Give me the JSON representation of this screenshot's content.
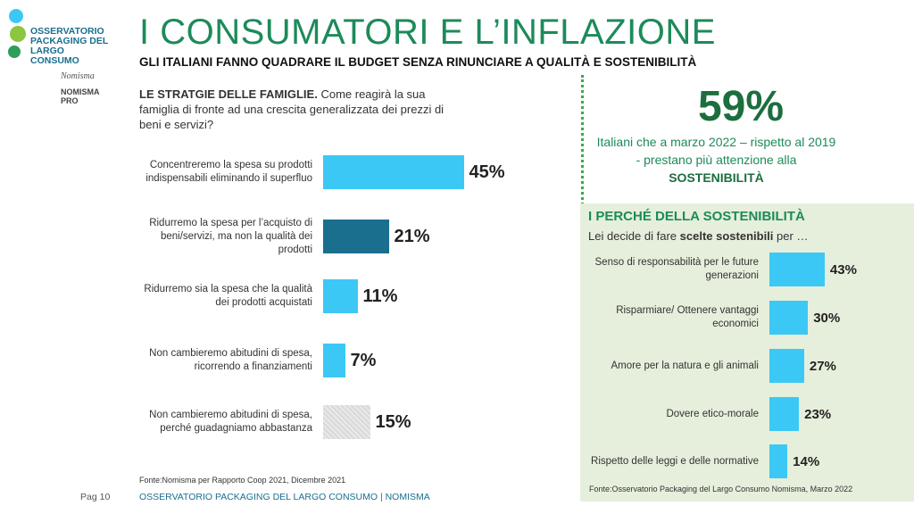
{
  "logo": {
    "name": "OSSERVATORIO PACKAGING DEL LARGO CONSUMO",
    "brand": "Nomisma",
    "brand_sub": "NOMISMA PRO"
  },
  "header": {
    "title": "I CONSUMATORI E L’INFLAZIONE",
    "subtitle": "GLI ITALIANI FANNO QUADRARE IL BUDGET SENZA RINUNCIARE A QUALITÀ E SOSTENIBILITÀ"
  },
  "highlight": {
    "figure": "59%",
    "text": "Italiani che a marzo 2022 – rispetto al 2019 - prestano più attenzione alla",
    "text_bold": "SOSTENIBILITÀ"
  },
  "footer": {
    "page": "Pag 10",
    "text": "OSSERVATORIO PACKAGING DEL LARGO CONSUMO | NOMISMA"
  },
  "chart_data": [
    {
      "type": "bar",
      "title": "LE STRATGIE DELLE FAMIGLIE.",
      "subtitle": "Come reagirà la sua famiglia di fronte ad una crescita generalizzata dei prezzi di beni e servizi?",
      "categories": [
        "Concentreremo la spesa su prodotti indispensabili eliminando il superfluo",
        "Ridurremo la spesa per l’acquisto di beni/servizi, ma non la qualità dei prodotti",
        "Ridurremo sia la spesa che la qualità dei prodotti acquistati",
        "Non cambieremo abitudini di spesa, ricorrendo a finanziamenti",
        "Non cambieremo abitudini di spesa, perché guadagniamo abbastanza"
      ],
      "values": [
        45,
        21,
        11,
        7,
        15
      ],
      "value_labels": [
        "45%",
        "21%",
        "11%",
        "7%",
        "15%"
      ],
      "colors": [
        "#3cc8f5",
        "#1a6e8e",
        "#3cc8f5",
        "#3cc8f5",
        "#d9d9d9"
      ],
      "source": "Fonte:Nomisma per Rapporto Coop 2021, Dicembre 2021"
    },
    {
      "type": "bar",
      "title": "I PERCHÉ DELLA SOSTENIBILITÀ",
      "subtitle_parts": [
        "Lei decide di fare",
        "scelte sostenibili",
        "per …"
      ],
      "categories": [
        "Senso di responsabilità per le future generazioni",
        "Risparmiare/ Ottenere vantaggi economici",
        "Amore per la natura e gli animali",
        "Dovere etico-morale",
        "Rispetto delle leggi e delle normative"
      ],
      "values": [
        43,
        30,
        27,
        23,
        14
      ],
      "value_labels": [
        "43%",
        "30%",
        "27%",
        "23%",
        "14%"
      ],
      "color": "#3cc8f5",
      "source": "Fonte:Osservatorio Packaging del Largo Consumo Nomisma, Marzo 2022"
    }
  ]
}
